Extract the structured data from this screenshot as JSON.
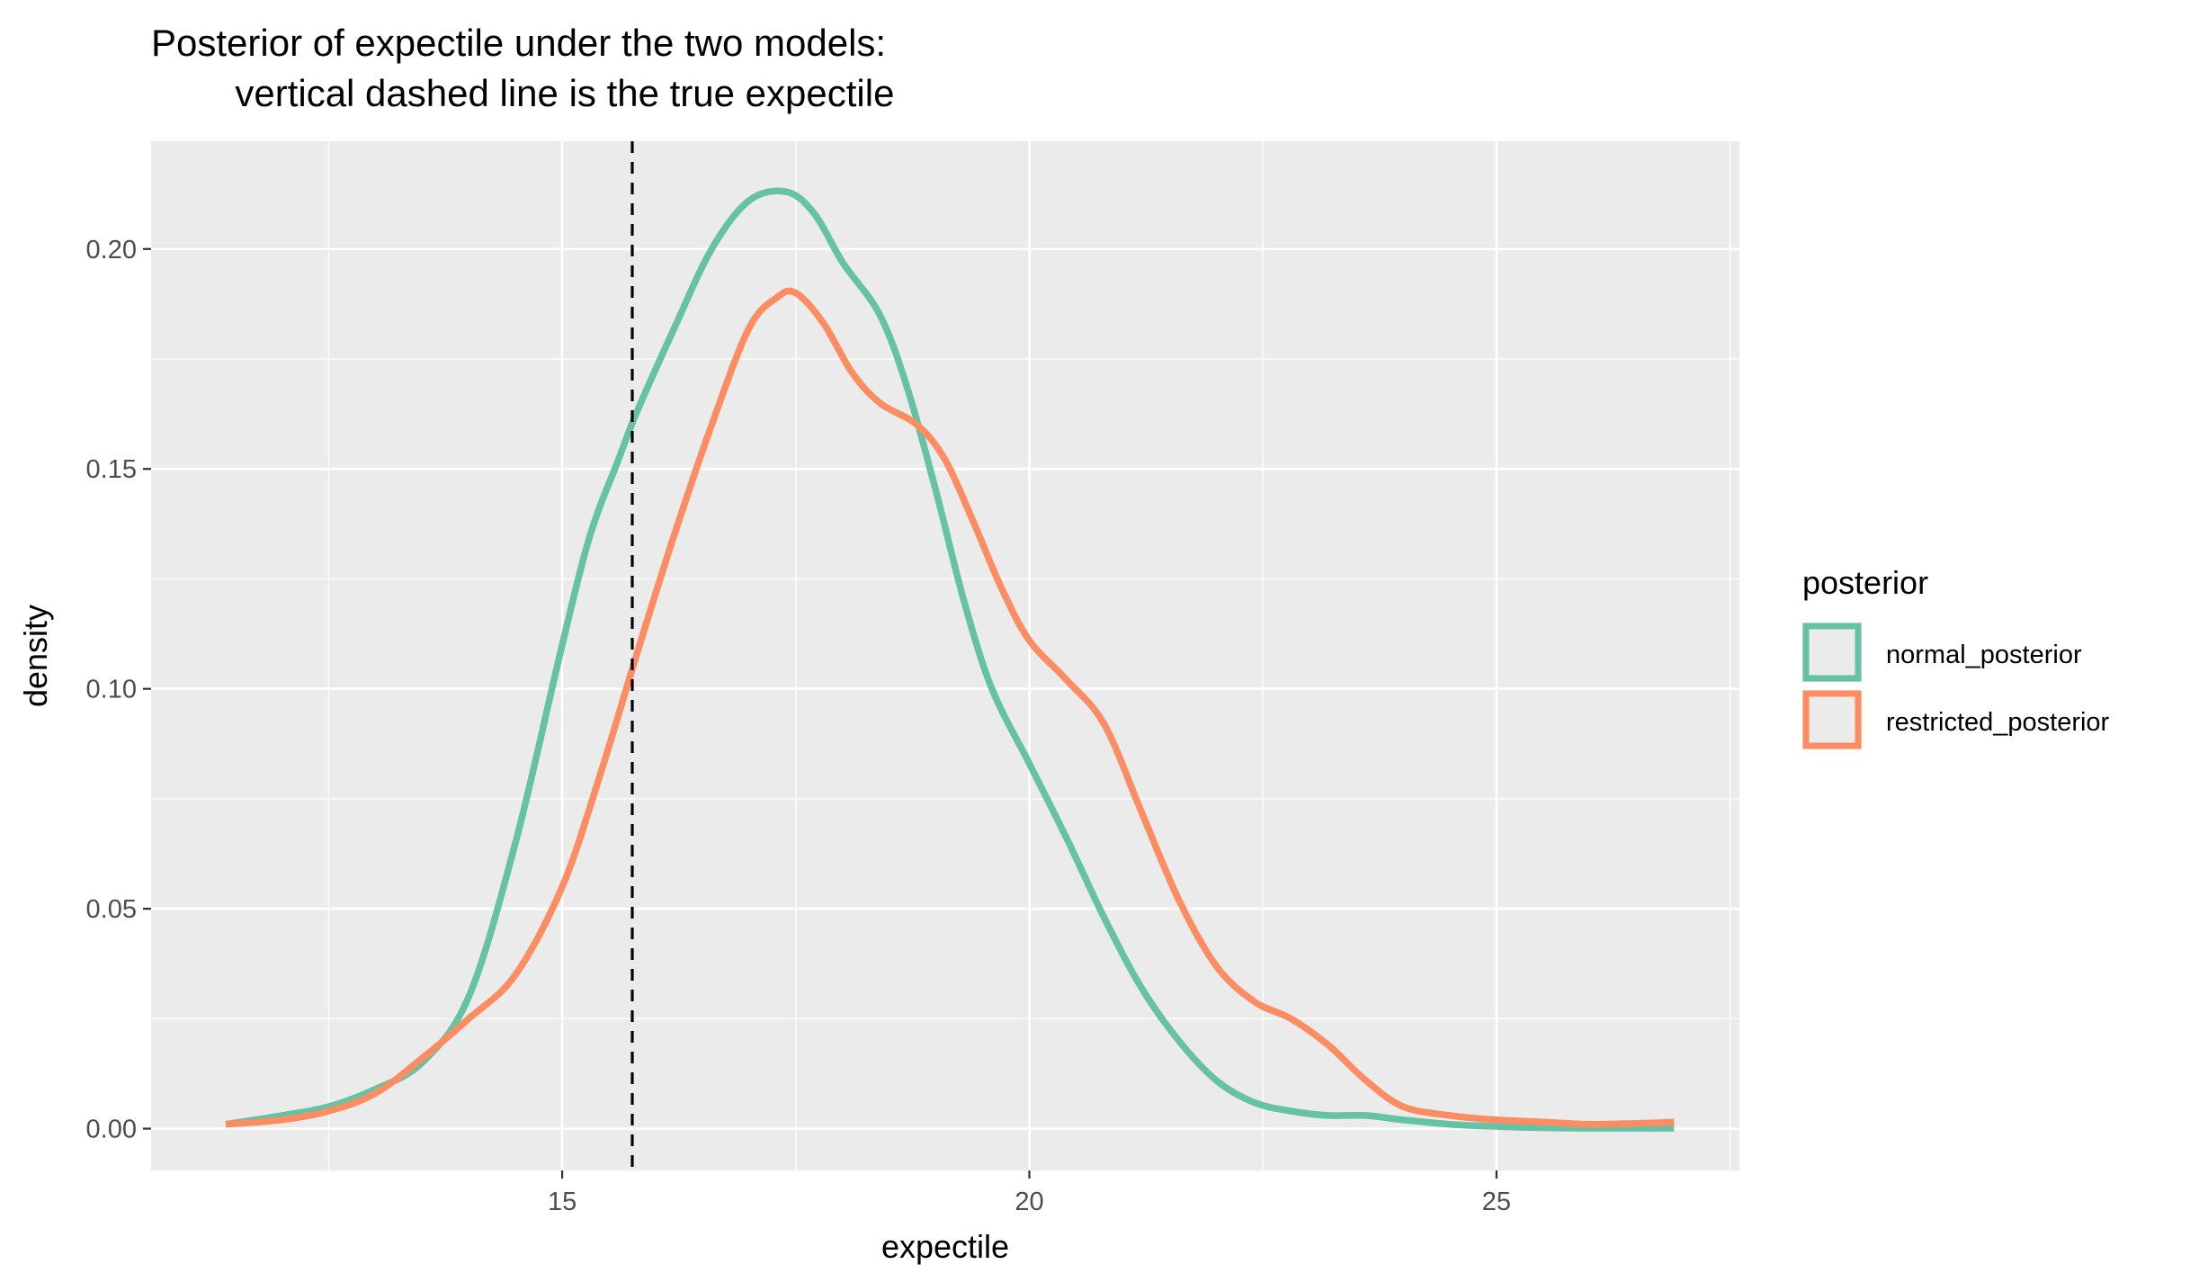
{
  "chart_data": {
    "type": "line",
    "title_lines": [
      "Posterior of expectile under the two models:",
      "        vertical dashed line is the true expectile"
    ],
    "xlabel": "expectile",
    "ylabel": "density",
    "xlim": [
      10.6,
      27.6
    ],
    "ylim": [
      -0.0095,
      0.2245
    ],
    "xticks": [
      15,
      20,
      25
    ],
    "xtick_labels": [
      "15",
      "20",
      "25"
    ],
    "yticks": [
      0,
      0.05,
      0.1,
      0.15,
      0.2
    ],
    "ytick_labels": [
      "0.00",
      "0.05",
      "0.10",
      "0.15",
      "0.20"
    ],
    "grid": true,
    "vline": {
      "x": 15.75,
      "style": "dashed",
      "label": "true expectile"
    },
    "legend": {
      "title": "posterior",
      "placement": "right"
    },
    "series": [
      {
        "name": "normal_posterior",
        "color": "#66C2A5",
        "x": [
          11.4,
          12.0,
          12.5,
          13.0,
          13.5,
          14.0,
          14.5,
          15.0,
          15.3,
          15.6,
          15.8,
          16.2,
          16.6,
          17.0,
          17.4,
          17.7,
          18.0,
          18.4,
          18.7,
          19.0,
          19.3,
          19.6,
          20.0,
          20.4,
          20.8,
          21.2,
          21.6,
          22.0,
          22.4,
          22.8,
          23.2,
          23.6,
          24.0,
          24.5,
          25.0,
          25.5,
          26.0,
          26.5,
          26.9
        ],
        "values": [
          0.001,
          0.003,
          0.005,
          0.009,
          0.015,
          0.03,
          0.065,
          0.11,
          0.135,
          0.152,
          0.163,
          0.182,
          0.2,
          0.211,
          0.213,
          0.208,
          0.197,
          0.185,
          0.168,
          0.145,
          0.12,
          0.1,
          0.083,
          0.066,
          0.048,
          0.032,
          0.02,
          0.011,
          0.006,
          0.004,
          0.003,
          0.003,
          0.002,
          0.001,
          0.0005,
          0.0002,
          0.0001,
          0.0001,
          0.0001
        ]
      },
      {
        "name": "restricted_posterior",
        "color": "#FC8D62",
        "x": [
          11.4,
          12.0,
          12.5,
          13.0,
          13.5,
          14.0,
          14.5,
          15.0,
          15.4,
          15.8,
          16.2,
          16.6,
          17.0,
          17.3,
          17.5,
          17.8,
          18.1,
          18.4,
          18.8,
          19.1,
          19.4,
          19.7,
          20.0,
          20.4,
          20.8,
          21.2,
          21.6,
          22.0,
          22.4,
          22.8,
          23.2,
          23.6,
          24.0,
          24.5,
          25.0,
          25.5,
          26.0,
          26.5,
          26.9
        ],
        "values": [
          0.001,
          0.002,
          0.004,
          0.008,
          0.016,
          0.025,
          0.035,
          0.055,
          0.08,
          0.108,
          0.135,
          0.16,
          0.182,
          0.189,
          0.19,
          0.183,
          0.172,
          0.165,
          0.16,
          0.152,
          0.138,
          0.123,
          0.111,
          0.102,
          0.092,
          0.072,
          0.052,
          0.037,
          0.029,
          0.025,
          0.019,
          0.011,
          0.005,
          0.003,
          0.002,
          0.0015,
          0.001,
          0.0012,
          0.0015
        ]
      }
    ]
  }
}
